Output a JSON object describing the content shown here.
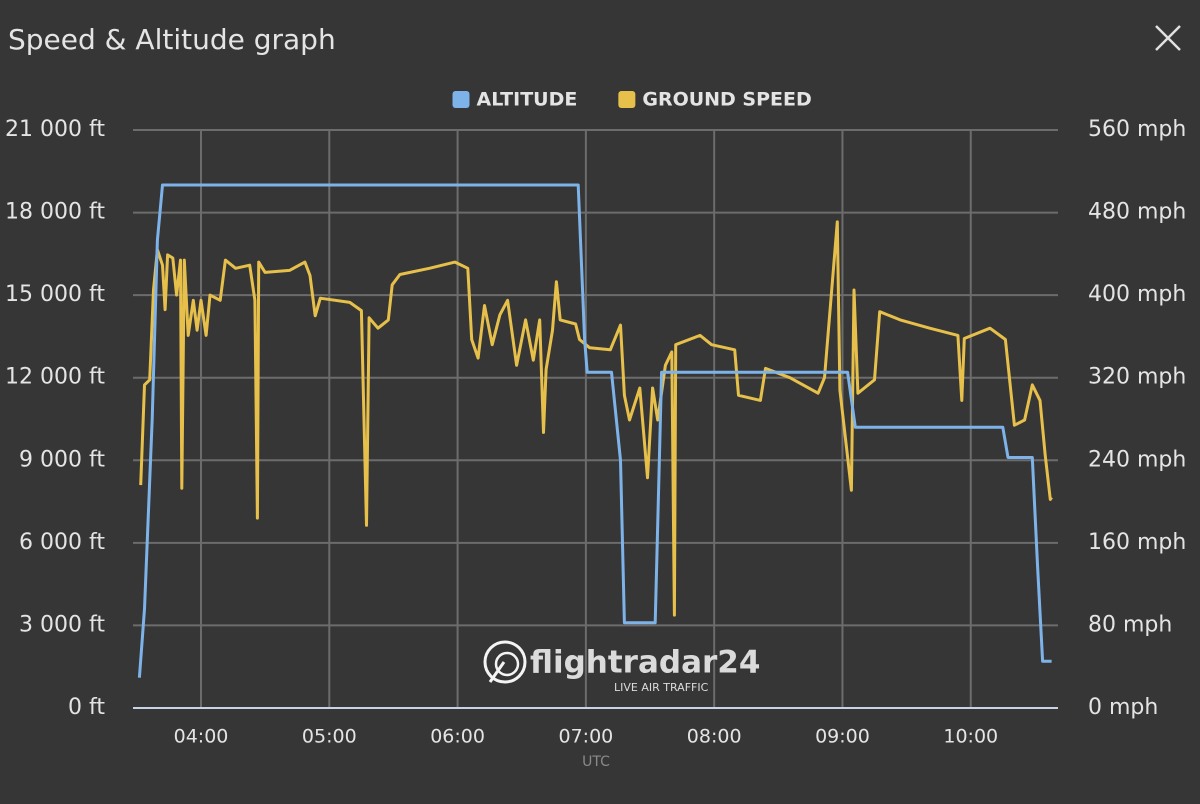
{
  "title": "Speed & Altitude graph",
  "chart_data": {
    "type": "line",
    "x_label": "UTC",
    "legend": "top",
    "grid": true,
    "xlim": [
      3.47,
      10.68
    ],
    "xticks": [
      {
        "value": 4,
        "label": "04:00"
      },
      {
        "value": 5,
        "label": "05:00"
      },
      {
        "value": 6,
        "label": "06:00"
      },
      {
        "value": 7,
        "label": "07:00"
      },
      {
        "value": 8,
        "label": "08:00"
      },
      {
        "value": 9,
        "label": "09:00"
      },
      {
        "value": 10,
        "label": "10:00"
      }
    ],
    "ylim": [
      0,
      21000
    ],
    "yticks": [
      {
        "value": 0,
        "label": "0 ft"
      },
      {
        "value": 3000,
        "label": "3 000 ft"
      },
      {
        "value": 6000,
        "label": "6 000 ft"
      },
      {
        "value": 9000,
        "label": "9 000 ft"
      },
      {
        "value": 12000,
        "label": "12 000 ft"
      },
      {
        "value": 15000,
        "label": "15 000 ft"
      },
      {
        "value": 18000,
        "label": "18 000 ft"
      },
      {
        "value": 21000,
        "label": "21 000 ft"
      }
    ],
    "y2lim": [
      0,
      560
    ],
    "y2ticks": [
      {
        "value": 0,
        "label": "0 mph"
      },
      {
        "value": 80,
        "label": "80 mph"
      },
      {
        "value": 160,
        "label": "160 mph"
      },
      {
        "value": 240,
        "label": "240 mph"
      },
      {
        "value": 320,
        "label": "320 mph"
      },
      {
        "value": 400,
        "label": "400 mph"
      },
      {
        "value": 480,
        "label": "480 mph"
      },
      {
        "value": 560,
        "label": "560 mph"
      }
    ],
    "series": [
      {
        "name": "ALTITUDE",
        "color": "#7eb3ea",
        "axis": "y",
        "x": [
          3.52,
          3.56,
          3.62,
          3.66,
          3.7,
          6.94,
          6.99,
          7.01,
          7.2,
          7.27,
          7.3,
          7.54,
          7.59,
          9.04,
          9.1,
          10.25,
          10.29,
          10.48,
          10.52,
          10.56,
          10.63
        ],
        "values": [
          1100,
          3600,
          10500,
          17000,
          19000,
          19000,
          13400,
          12200,
          12200,
          9000,
          3100,
          3100,
          12200,
          12200,
          10200,
          10200,
          9100,
          9100,
          5200,
          1700,
          1700
        ]
      },
      {
        "name": "GROUND SPEED",
        "color": "#e6c04a",
        "axis": "y2",
        "x": [
          3.53,
          3.56,
          3.6,
          3.63,
          3.66,
          3.7,
          3.72,
          3.74,
          3.78,
          3.81,
          3.84,
          3.85,
          3.87,
          3.9,
          3.94,
          3.97,
          4.0,
          4.04,
          4.07,
          4.15,
          4.19,
          4.27,
          4.38,
          4.42,
          4.44,
          4.45,
          4.5,
          4.69,
          4.81,
          4.85,
          4.89,
          4.93,
          5.16,
          5.25,
          5.29,
          5.31,
          5.38,
          5.46,
          5.49,
          5.55,
          5.78,
          5.98,
          6.08,
          6.11,
          6.16,
          6.21,
          6.27,
          6.33,
          6.39,
          6.46,
          6.53,
          6.59,
          6.64,
          6.67,
          6.69,
          6.74,
          6.77,
          6.8,
          6.92,
          6.95,
          7.03,
          7.19,
          7.27,
          7.3,
          7.34,
          7.42,
          7.48,
          7.52,
          7.56,
          7.62,
          7.67,
          7.69,
          7.7,
          7.89,
          7.98,
          8.16,
          8.19,
          8.36,
          8.4,
          8.59,
          8.81,
          8.86,
          8.96,
          8.98,
          9.07,
          9.09,
          9.12,
          9.25,
          9.29,
          9.45,
          9.68,
          9.9,
          9.93,
          9.95,
          10.15,
          10.27,
          10.34,
          10.42,
          10.48,
          10.54,
          10.58,
          10.62,
          10.63
        ],
        "values": [
          216,
          313,
          318,
          405,
          444,
          429,
          386,
          439,
          436,
          400,
          434,
          213,
          434,
          361,
          395,
          366,
          395,
          361,
          400,
          395,
          434,
          426,
          429,
          395,
          184,
          432,
          422,
          424,
          432,
          419,
          380,
          397,
          393,
          385,
          177,
          378,
          368,
          376,
          410,
          420,
          426,
          432,
          426,
          357,
          339,
          390,
          352,
          381,
          395,
          332,
          376,
          337,
          376,
          267,
          328,
          366,
          413,
          376,
          372,
          357,
          349,
          347,
          371,
          303,
          279,
          310,
          223,
          310,
          279,
          332,
          345,
          90,
          352,
          361,
          352,
          347,
          303,
          298,
          329,
          320,
          305,
          320,
          471,
          308,
          211,
          405,
          305,
          318,
          384,
          376,
          368,
          361,
          298,
          358,
          368,
          357,
          274,
          279,
          313,
          298,
          245,
          202,
          204
        ]
      }
    ],
    "watermark": {
      "brand": "flightradar24",
      "tagline": "LIVE AIR TRAFFIC"
    }
  }
}
